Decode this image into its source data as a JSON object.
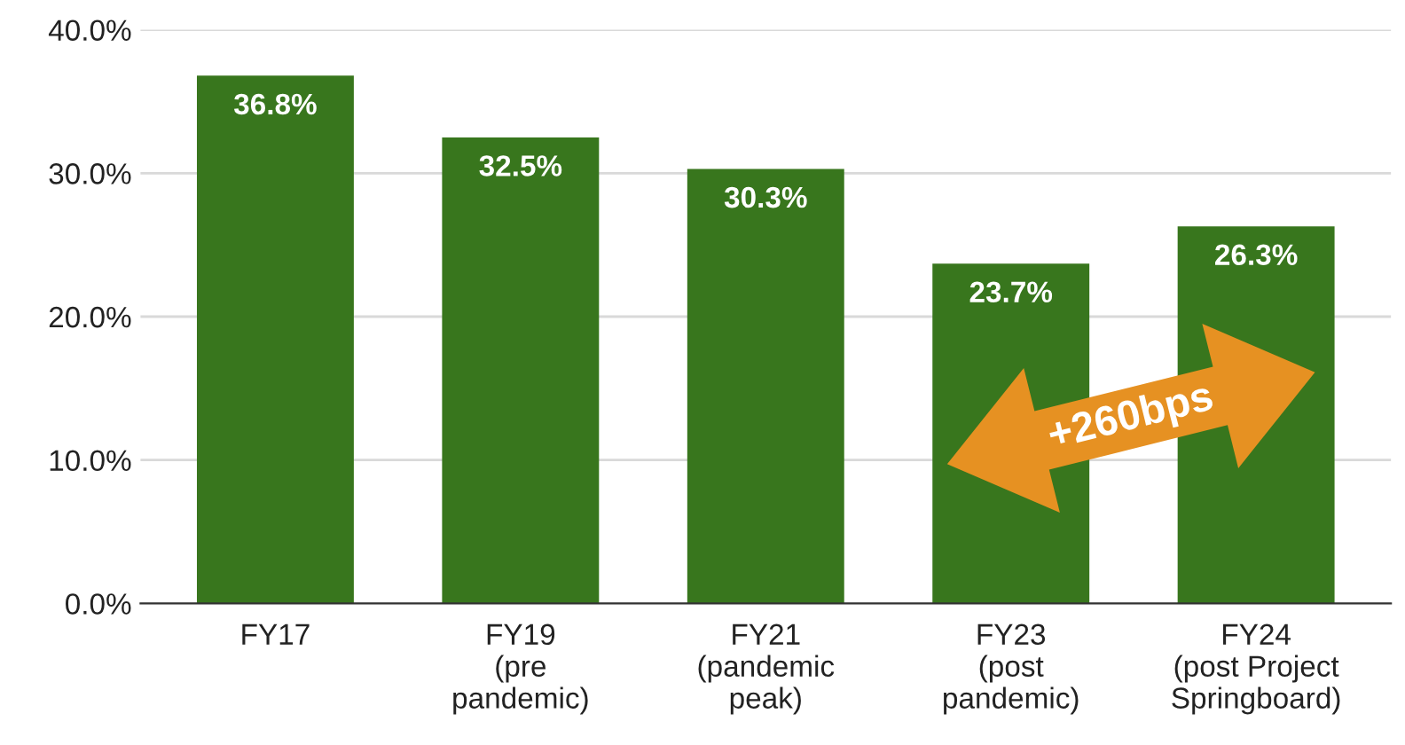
{
  "chart_data": {
    "type": "bar",
    "categories": [
      "FY17",
      "FY19\n(pre\npandemic)",
      "FY21\n(pandemic\npeak)",
      "FY23\n(post\npandemic)",
      "FY24\n(post Project\nSpringboard)"
    ],
    "series": [
      {
        "color": "#38761d",
        "values": [
          36.8,
          32.5,
          30.3,
          23.7,
          26.3
        ],
        "value_labels": [
          "36.8%",
          "32.5%",
          "30.3%",
          "23.7%",
          "26.3%"
        ]
      }
    ],
    "ylim": [
      0,
      40
    ],
    "yticks": [
      {
        "value": 0,
        "label": "0.0%"
      },
      {
        "value": 10,
        "label": "10.0%"
      },
      {
        "value": 20,
        "label": "20.0%"
      },
      {
        "value": 30,
        "label": "30.0%"
      },
      {
        "value": 40,
        "label": "40.0%"
      }
    ],
    "grid": "y",
    "annotations": [
      "+260bps"
    ]
  }
}
